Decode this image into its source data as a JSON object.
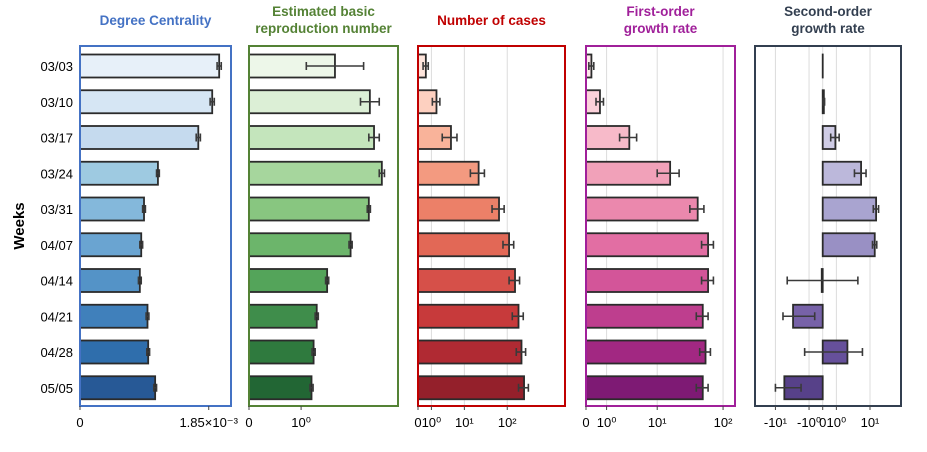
{
  "figure": {
    "y_axis_label": "Weeks",
    "weeks": [
      "03/03",
      "03/10",
      "03/17",
      "03/24",
      "03/31",
      "04/07",
      "04/14",
      "04/21",
      "04/28",
      "05/05"
    ]
  },
  "chart_data": [
    {
      "type": "bar",
      "orientation": "horizontal",
      "title_lines": [
        "Degree Centrality"
      ],
      "title_color": "#4472c4",
      "frame_color": "#4472c4",
      "categories": [
        "03/03",
        "03/10",
        "03/17",
        "03/24",
        "03/31",
        "04/07",
        "04/14",
        "04/21",
        "04/28",
        "05/05"
      ],
      "values": [
        0.002,
        0.0019,
        0.0017,
        0.00112,
        0.00092,
        0.00088,
        0.00086,
        0.00097,
        0.00098,
        0.00108
      ],
      "errors": [
        3e-05,
        3e-05,
        3e-05,
        2e-05,
        2e-05,
        2e-05,
        2e-05,
        2e-05,
        2e-05,
        2e-05
      ],
      "xlim": [
        0,
        0.00217
      ],
      "scale": "linear",
      "ticks": [
        {
          "value": 0,
          "label": "0"
        },
        {
          "value": 0.00185,
          "label": "1.85×10⁻³"
        }
      ],
      "colors": [
        "#e7f0f9",
        "#d6e6f4",
        "#c5daee",
        "#9ecae1",
        "#84b8db",
        "#6aa4d1",
        "#5493c7",
        "#4080bb",
        "#2f6eac",
        "#275996"
      ]
    },
    {
      "type": "bar",
      "orientation": "horizontal",
      "title_lines": [
        "Estimated basic",
        "reproduction number"
      ],
      "title_color": "#548235",
      "frame_color": "#548235",
      "categories": [
        "03/03",
        "03/10",
        "03/17",
        "03/24",
        "03/31",
        "04/07",
        "04/14",
        "04/21",
        "04/28",
        "05/05"
      ],
      "values": [
        1.65,
        2.32,
        2.4,
        2.55,
        2.3,
        1.95,
        1.5,
        1.3,
        1.24,
        1.2
      ],
      "errors": [
        0.55,
        0.18,
        0.1,
        0.05,
        0.03,
        0.03,
        0.03,
        0.03,
        0.03,
        0.03
      ],
      "xlim": [
        0,
        2.86
      ],
      "scale": "linear",
      "ticks": [
        {
          "value": 0,
          "label": "0"
        },
        {
          "value": 1,
          "label": "10⁰"
        }
      ],
      "colors": [
        "#edf7e9",
        "#dcefd6",
        "#c4e5bc",
        "#a6d69d",
        "#88c680",
        "#6cb56b",
        "#54a45a",
        "#3f8d4b",
        "#2f7a3e",
        "#226634"
      ]
    },
    {
      "type": "bar",
      "orientation": "horizontal",
      "title_lines": [
        "Number of cases"
      ],
      "title_color": "#c00000",
      "frame_color": "#c00000",
      "categories": [
        "03/03",
        "03/10",
        "03/17",
        "03/24",
        "03/31",
        "04/07",
        "04/14",
        "04/21",
        "04/28",
        "05/05"
      ],
      "values": [
        0.5,
        1.6,
        4.5,
        22,
        65,
        110,
        150,
        180,
        210,
        240
      ],
      "errors": [
        0.2,
        0.5,
        2.0,
        8,
        20,
        30,
        40,
        50,
        50,
        60
      ],
      "xlim": [
        0,
        2000
      ],
      "scale": "symlog",
      "ticks": [
        {
          "value": 0,
          "label": "0"
        },
        {
          "value": 1,
          "label": "10⁰"
        },
        {
          "value": 10,
          "label": "10¹"
        },
        {
          "value": 100,
          "label": "10²"
        }
      ],
      "colors": [
        "#fee5dc",
        "#fdd0c0",
        "#f9b39a",
        "#f39a80",
        "#ec8068",
        "#e26856",
        "#d65049",
        "#c73a3b",
        "#b02a33",
        "#94202b"
      ]
    },
    {
      "type": "bar",
      "orientation": "horizontal",
      "title_lines": [
        "First-order",
        "growth rate"
      ],
      "title_color": "#a0209a",
      "frame_color": "#a0209a",
      "categories": [
        "03/03",
        "03/10",
        "03/17",
        "03/24",
        "03/31",
        "04/07",
        "04/14",
        "04/21",
        "04/28",
        "05/05"
      ],
      "values": [
        0.2,
        0.6,
        3.3,
        16,
        42,
        60,
        60,
        50,
        55,
        50
      ],
      "errors": [
        0.1,
        0.2,
        1.2,
        6,
        10,
        12,
        12,
        10,
        10,
        10
      ],
      "xlim": [
        0,
        150
      ],
      "scale": "symlog",
      "ticks": [
        {
          "value": 0,
          "label": "0"
        },
        {
          "value": 1,
          "label": "10⁰"
        },
        {
          "value": 10,
          "label": "10¹"
        },
        {
          "value": 100,
          "label": "10²"
        }
      ],
      "colors": [
        "#fde7ea",
        "#fbd1da",
        "#f7bac9",
        "#f1a1b9",
        "#eb88ad",
        "#e26ea3",
        "#d35599",
        "#be3e8e",
        "#a22882",
        "#7e1a74"
      ]
    },
    {
      "type": "bar",
      "orientation": "horizontal",
      "title_lines": [
        "Second-order",
        "growth rate"
      ],
      "title_color": "#333f50",
      "frame_color": "#333f50",
      "categories": [
        "03/03",
        "03/10",
        "03/17",
        "03/24",
        "03/31",
        "04/07",
        "04/14",
        "04/21",
        "04/28",
        "05/05"
      ],
      "values": [
        0,
        0.06,
        0.9,
        6,
        14,
        13,
        -0.05,
        -3.5,
        2.5,
        -6
      ],
      "errors": [
        0,
        0.04,
        0.4,
        2,
        2,
        1.5,
        5,
        3,
        4,
        4
      ],
      "xlim": [
        -30,
        52
      ],
      "scale": "symlog",
      "ticks": [
        {
          "value": -10,
          "label": "-10¹"
        },
        {
          "value": -1,
          "label": "-10⁰"
        },
        {
          "value": 0,
          "label": "0"
        },
        {
          "value": 1,
          "label": "10⁰"
        },
        {
          "value": 10,
          "label": "10¹"
        }
      ],
      "colors": [
        "#f0eff6",
        "#e2e0ef",
        "#cfcce5",
        "#bcb8db",
        "#a9a4d0",
        "#9990c4",
        "#8879b6",
        "#7762a8",
        "#66509b",
        "#574189"
      ]
    }
  ]
}
